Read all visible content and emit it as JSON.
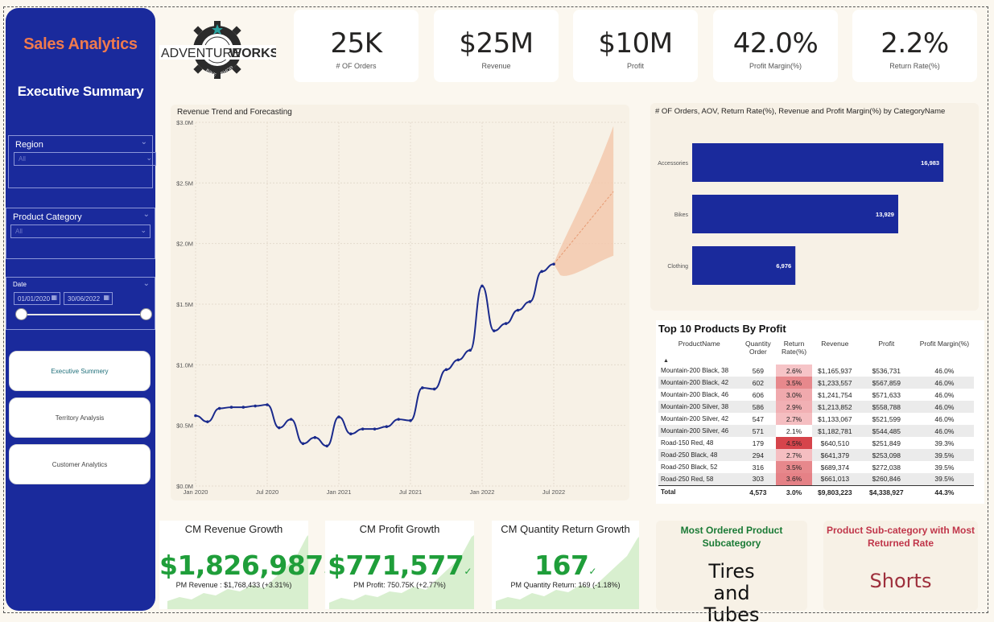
{
  "sidebar": {
    "title": "Sales Analytics",
    "subtitle": "Executive Summary",
    "region": {
      "label": "Region",
      "value": "All"
    },
    "category": {
      "label": "Product Category",
      "value": "All"
    },
    "date": {
      "label": "Date",
      "start": "01/01/2020",
      "end": "30/06/2022"
    },
    "nav": [
      {
        "label": "Executive Summery"
      },
      {
        "label": "Territory Analysis"
      },
      {
        "label": "Customer Analytics"
      }
    ]
  },
  "logo": {
    "text_a": "ADVENTURE",
    "text_b": "WORKS",
    "ring_left": "BIKE",
    "ring_right": "SHOP"
  },
  "kpis": [
    {
      "value": "25K",
      "caption": "# OF Orders"
    },
    {
      "value": "$25M",
      "caption": "Revenue"
    },
    {
      "value": "$10M",
      "caption": "Profit"
    },
    {
      "value": "42.0%",
      "caption": "Profit Margin(%)"
    },
    {
      "value": "2.2%",
      "caption": "Return Rate(%)"
    }
  ],
  "colors": {
    "accent": "#f07a4d",
    "sidebar": "#1a2a9c",
    "bar": "#1a2a9c",
    "line": "#1a2a8c",
    "forecast": "#f3c9ad",
    "positive": "#1f9e3a",
    "negative": "#b23a3a"
  },
  "chart_data": [
    {
      "type": "line",
      "title": "Revenue Trend and Forecasting",
      "x_ticks": [
        "Jan 2020",
        "Jul 2020",
        "Jan 2021",
        "Jul 2021",
        "Jan 2022",
        "Jul 2022"
      ],
      "y_ticks": [
        "$0.0M",
        "$0.5M",
        "$1.0M",
        "$1.5M",
        "$2.0M",
        "$2.5M",
        "$3.0M"
      ],
      "ylim": [
        0,
        3.0
      ],
      "unit": "$M",
      "series": [
        {
          "values": [
            {
              "x": "2020-01",
              "y": 0.58
            },
            {
              "x": "2020-02",
              "y": 0.53
            },
            {
              "x": "2020-03",
              "y": 0.64
            },
            {
              "x": "2020-04",
              "y": 0.65
            },
            {
              "x": "2020-05",
              "y": 0.65
            },
            {
              "x": "2020-06",
              "y": 0.66
            },
            {
              "x": "2020-07",
              "y": 0.67
            },
            {
              "x": "2020-08",
              "y": 0.48
            },
            {
              "x": "2020-09",
              "y": 0.55
            },
            {
              "x": "2020-10",
              "y": 0.35
            },
            {
              "x": "2020-11",
              "y": 0.4
            },
            {
              "x": "2020-12",
              "y": 0.33
            },
            {
              "x": "2021-01",
              "y": 0.57
            },
            {
              "x": "2021-02",
              "y": 0.43
            },
            {
              "x": "2021-03",
              "y": 0.47
            },
            {
              "x": "2021-04",
              "y": 0.47
            },
            {
              "x": "2021-05",
              "y": 0.49
            },
            {
              "x": "2021-06",
              "y": 0.55
            },
            {
              "x": "2021-07",
              "y": 0.54
            },
            {
              "x": "2021-08",
              "y": 0.81
            },
            {
              "x": "2021-09",
              "y": 0.8
            },
            {
              "x": "2021-10",
              "y": 0.96
            },
            {
              "x": "2021-11",
              "y": 1.04
            },
            {
              "x": "2021-12",
              "y": 1.12
            },
            {
              "x": "2022-01",
              "y": 1.65
            },
            {
              "x": "2022-02",
              "y": 1.28
            },
            {
              "x": "2022-03",
              "y": 1.34
            },
            {
              "x": "2022-04",
              "y": 1.45
            },
            {
              "x": "2022-05",
              "y": 1.52
            },
            {
              "x": "2022-06",
              "y": 1.77
            },
            {
              "x": "2022-07",
              "y": 1.83
            }
          ]
        }
      ],
      "forecast": {
        "start": {
          "x": "2022-07",
          "y": 1.83
        },
        "end": {
          "x": "2022-12",
          "y": 2.43
        },
        "upper_end": 2.97,
        "lower_end": 1.9
      }
    },
    {
      "type": "bar",
      "orientation": "horizontal",
      "title": "# OF Orders, AOV, Return Rate(%), Revenue and Profit Margin(%) by CategoryName",
      "categories": [
        "Accessories",
        "Bikes",
        "Clothing"
      ],
      "values": [
        16983,
        13929,
        6976
      ],
      "labels": [
        "16,983",
        "13,929",
        "6,976"
      ]
    }
  ],
  "top_products": {
    "title": "Top 10 Products By Profit",
    "headers": [
      "ProductName",
      "Quantity Order",
      "Return Rate(%)",
      "Revenue",
      "Profit",
      "Profit Margin(%)"
    ],
    "rows": [
      {
        "name": "Mountain-200 Black, 38",
        "qty": "569",
        "ret": "2.6%",
        "ret_val": 2.6,
        "rev": "$1,165,937",
        "profit": "$536,731",
        "margin": "46.0%"
      },
      {
        "name": "Mountain-200 Black, 42",
        "qty": "602",
        "ret": "3.5%",
        "ret_val": 3.5,
        "rev": "$1,233,557",
        "profit": "$567,859",
        "margin": "46.0%"
      },
      {
        "name": "Mountain-200 Black, 46",
        "qty": "606",
        "ret": "3.0%",
        "ret_val": 3.0,
        "rev": "$1,241,754",
        "profit": "$571,633",
        "margin": "46.0%"
      },
      {
        "name": "Mountain-200 Silver, 38",
        "qty": "586",
        "ret": "2.9%",
        "ret_val": 2.9,
        "rev": "$1,213,852",
        "profit": "$558,788",
        "margin": "46.0%"
      },
      {
        "name": "Mountain-200 Silver, 42",
        "qty": "547",
        "ret": "2.7%",
        "ret_val": 2.7,
        "rev": "$1,133,067",
        "profit": "$521,599",
        "margin": "46.0%"
      },
      {
        "name": "Mountain-200 Silver, 46",
        "qty": "571",
        "ret": "2.1%",
        "ret_val": 2.1,
        "rev": "$1,182,781",
        "profit": "$544,485",
        "margin": "46.0%"
      },
      {
        "name": "Road-150 Red, 48",
        "qty": "179",
        "ret": "4.5%",
        "ret_val": 4.5,
        "rev": "$640,510",
        "profit": "$251,849",
        "margin": "39.3%"
      },
      {
        "name": "Road-250 Black, 48",
        "qty": "294",
        "ret": "2.7%",
        "ret_val": 2.7,
        "rev": "$641,379",
        "profit": "$253,098",
        "margin": "39.5%"
      },
      {
        "name": "Road-250 Black, 52",
        "qty": "316",
        "ret": "3.5%",
        "ret_val": 3.5,
        "rev": "$689,374",
        "profit": "$272,038",
        "margin": "39.5%"
      },
      {
        "name": "Road-250 Red, 58",
        "qty": "303",
        "ret": "3.6%",
        "ret_val": 3.6,
        "rev": "$661,013",
        "profit": "$260,846",
        "margin": "39.5%"
      }
    ],
    "total": {
      "name": "Total",
      "qty": "4,573",
      "ret": "3.0%",
      "rev": "$9,803,223",
      "profit": "$4,338,927",
      "margin": "44.3%"
    }
  },
  "growth_cards": [
    {
      "title": "CM Revenue Growth",
      "value": "$1,826,987",
      "sub": "PM Revenue : $1,768,433 (+3.31%)"
    },
    {
      "title": "CM Profit Growth",
      "value": "$771,577",
      "sub": "PM Profit: 750.75K (+2.77%)"
    },
    {
      "title": "CM Quantity Return Growth",
      "value": "167",
      "sub": "PM Quantity Return: 169 (-1.18%)"
    }
  ],
  "callouts": [
    {
      "title": "Most Ordered Product Subcategory",
      "value": "Tires and Tubes"
    },
    {
      "title": "Product Sub-category with Most Returned Rate",
      "value": "Shorts"
    }
  ]
}
